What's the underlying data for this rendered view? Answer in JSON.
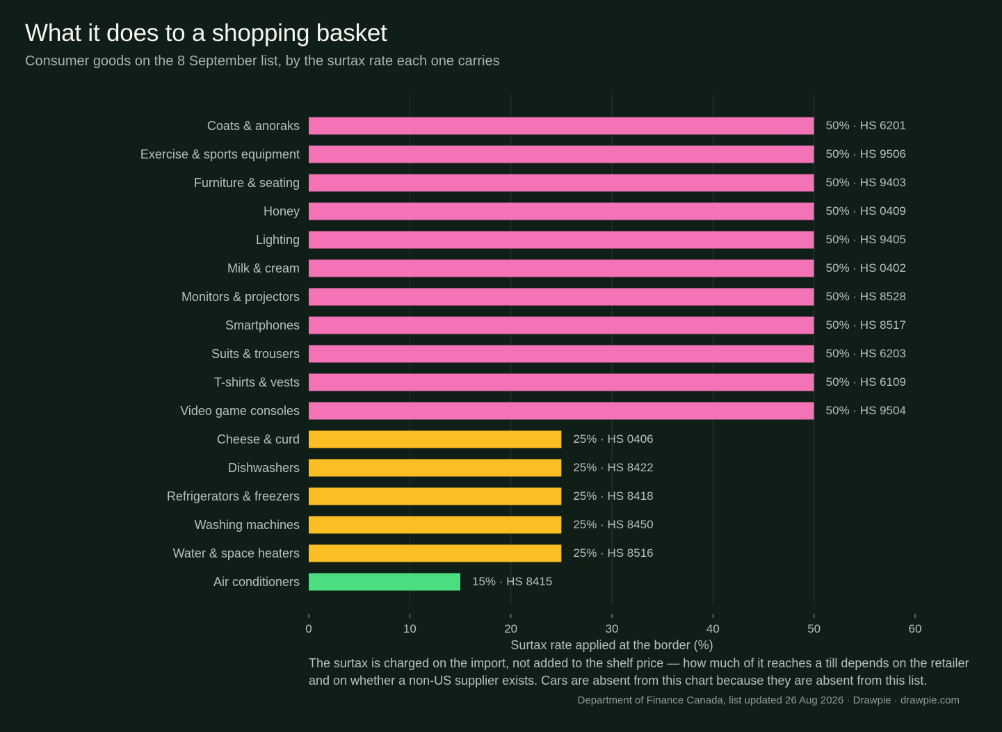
{
  "header": {
    "title": "What it does to a shopping basket",
    "subtitle": "Consumer goods on the 8 September list, by the surtax rate each one carries"
  },
  "colors": {
    "background": "#101e18",
    "rate_50": "#f472b6",
    "rate_25": "#fbbf24",
    "rate_15": "#4ade80",
    "gridline": "#26352d"
  },
  "chart_data": {
    "type": "bar",
    "orientation": "horizontal",
    "categories": [
      "Coats & anoraks",
      "Exercise & sports equipment",
      "Furniture & seating",
      "Honey",
      "Lighting",
      "Milk & cream",
      "Monitors & projectors",
      "Smartphones",
      "Suits & trousers",
      "T-shirts & vests",
      "Video game consoles",
      "Cheese & curd",
      "Dishwashers",
      "Refrigerators & freezers",
      "Washing machines",
      "Water & space heaters",
      "Air conditioners"
    ],
    "values": [
      50,
      50,
      50,
      50,
      50,
      50,
      50,
      50,
      50,
      50,
      50,
      25,
      25,
      25,
      25,
      25,
      15
    ],
    "hs_codes": [
      "HS 6201",
      "HS 9506",
      "HS 9403",
      "HS 0409",
      "HS 9405",
      "HS 0402",
      "HS 8528",
      "HS 8517",
      "HS 6203",
      "HS 6109",
      "HS 9504",
      "HS 0406",
      "HS 8422",
      "HS 8418",
      "HS 8450",
      "HS 8516",
      "HS 8415"
    ],
    "xlabel": "Surtax rate applied at the border (%)",
    "xlim": [
      0,
      60
    ],
    "xticks": [
      0,
      10,
      20,
      30,
      40,
      50,
      60
    ],
    "grid": "vertical"
  },
  "note": "The surtax is charged on the import, not added to the shelf price — how much of it reaches a till depends on the retailer and on whether a non-US supplier exists. Cars are absent from this chart because they are absent from this list.",
  "source": "Department of Finance Canada, list updated 26 Aug 2026  ·  Drawpie · drawpie.com"
}
